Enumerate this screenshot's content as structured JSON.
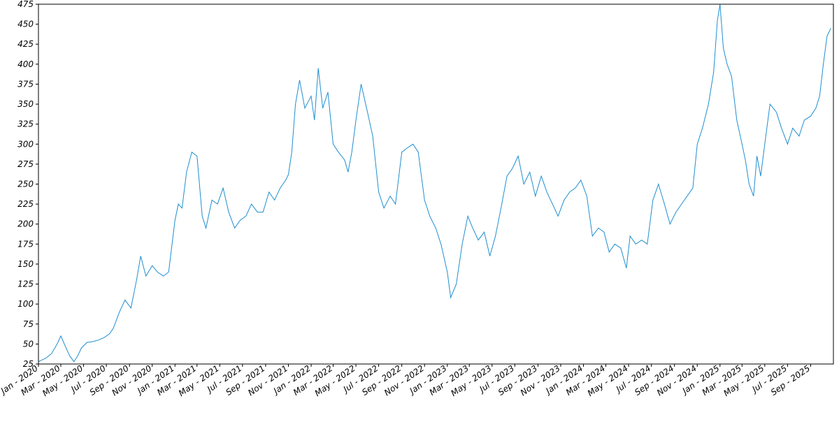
{
  "chart_data": {
    "type": "line",
    "title": "",
    "xlabel": "",
    "ylabel": "",
    "grid": false,
    "legend": "none",
    "line_color": "#1f8fd0",
    "x_domain": [
      "2020-01-01",
      "2025-11-01"
    ],
    "ylim": [
      25,
      475
    ],
    "y_ticks": [
      25,
      50,
      75,
      100,
      125,
      150,
      175,
      200,
      225,
      250,
      275,
      300,
      325,
      350,
      375,
      400,
      425,
      450,
      475
    ],
    "x_ticks": [
      {
        "date": "2020-01-01",
        "label": "Jan - 2020"
      },
      {
        "date": "2020-03-01",
        "label": "Mar - 2020"
      },
      {
        "date": "2020-05-01",
        "label": "May - 2020"
      },
      {
        "date": "2020-07-01",
        "label": "Jul - 2020"
      },
      {
        "date": "2020-09-01",
        "label": "Sep - 2020"
      },
      {
        "date": "2020-11-01",
        "label": "Nov - 2020"
      },
      {
        "date": "2021-01-01",
        "label": "Jan - 2021"
      },
      {
        "date": "2021-03-01",
        "label": "Mar - 2021"
      },
      {
        "date": "2021-05-01",
        "label": "May - 2021"
      },
      {
        "date": "2021-07-01",
        "label": "Jul - 2021"
      },
      {
        "date": "2021-09-01",
        "label": "Sep - 2021"
      },
      {
        "date": "2021-11-01",
        "label": "Nov - 2021"
      },
      {
        "date": "2022-01-01",
        "label": "Jan - 2022"
      },
      {
        "date": "2022-03-01",
        "label": "Mar - 2022"
      },
      {
        "date": "2022-05-01",
        "label": "May - 2022"
      },
      {
        "date": "2022-07-01",
        "label": "Jul - 2022"
      },
      {
        "date": "2022-09-01",
        "label": "Sep - 2022"
      },
      {
        "date": "2022-11-01",
        "label": "Nov - 2022"
      },
      {
        "date": "2023-01-01",
        "label": "Jan - 2023"
      },
      {
        "date": "2023-03-01",
        "label": "Mar - 2023"
      },
      {
        "date": "2023-05-01",
        "label": "May - 2023"
      },
      {
        "date": "2023-07-01",
        "label": "Jul - 2023"
      },
      {
        "date": "2023-09-01",
        "label": "Sep - 2023"
      },
      {
        "date": "2023-11-01",
        "label": "Nov - 2023"
      },
      {
        "date": "2024-01-01",
        "label": "Jan - 2024"
      },
      {
        "date": "2024-03-01",
        "label": "Mar - 2024"
      },
      {
        "date": "2024-05-01",
        "label": "May - 2024"
      },
      {
        "date": "2024-07-01",
        "label": "Jul - 2024"
      },
      {
        "date": "2024-09-01",
        "label": "Sep - 2024"
      },
      {
        "date": "2024-11-01",
        "label": "Nov - 2024"
      },
      {
        "date": "2025-01-01",
        "label": "Jan - 2025"
      },
      {
        "date": "2025-03-01",
        "label": "Mar - 2025"
      },
      {
        "date": "2025-05-01",
        "label": "May - 2025"
      },
      {
        "date": "2025-07-01",
        "label": "Jul - 2025"
      },
      {
        "date": "2025-09-01",
        "label": "Sep - 2025"
      }
    ],
    "series": [
      {
        "x": [
          "2020-01-01",
          "2020-01-20",
          "2020-02-05",
          "2020-02-20",
          "2020-03-01",
          "2020-03-15",
          "2020-03-25",
          "2020-04-05",
          "2020-04-15",
          "2020-04-25",
          "2020-05-10",
          "2020-05-25",
          "2020-06-10",
          "2020-06-25",
          "2020-07-10",
          "2020-07-20",
          "2020-08-05",
          "2020-08-20",
          "2020-09-05",
          "2020-09-20",
          "2020-10-01",
          "2020-10-15",
          "2020-11-01",
          "2020-11-15",
          "2020-12-01",
          "2020-12-15",
          "2021-01-01",
          "2021-01-10",
          "2021-01-20",
          "2021-02-01",
          "2021-02-15",
          "2021-03-01",
          "2021-03-15",
          "2021-03-25",
          "2021-04-10",
          "2021-04-25",
          "2021-05-10",
          "2021-05-25",
          "2021-06-10",
          "2021-06-25",
          "2021-07-10",
          "2021-07-25",
          "2021-08-10",
          "2021-08-25",
          "2021-09-10",
          "2021-09-25",
          "2021-10-10",
          "2021-10-25",
          "2021-11-01",
          "2021-11-10",
          "2021-11-20",
          "2021-12-01",
          "2021-12-15",
          "2022-01-01",
          "2022-01-10",
          "2022-01-20",
          "2022-02-01",
          "2022-02-15",
          "2022-03-01",
          "2022-03-15",
          "2022-04-01",
          "2022-04-10",
          "2022-04-20",
          "2022-05-01",
          "2022-05-15",
          "2022-06-01",
          "2022-06-15",
          "2022-07-01",
          "2022-07-15",
          "2022-08-01",
          "2022-08-15",
          "2022-09-01",
          "2022-09-15",
          "2022-10-01",
          "2022-10-15",
          "2022-11-01",
          "2022-11-15",
          "2022-12-01",
          "2022-12-15",
          "2023-01-01",
          "2023-01-10",
          "2023-01-25",
          "2023-02-10",
          "2023-02-25",
          "2023-03-10",
          "2023-03-25",
          "2023-04-10",
          "2023-04-25",
          "2023-05-10",
          "2023-05-25",
          "2023-06-10",
          "2023-06-25",
          "2023-07-10",
          "2023-07-25",
          "2023-08-10",
          "2023-08-25",
          "2023-09-10",
          "2023-09-25",
          "2023-10-10",
          "2023-10-25",
          "2023-11-10",
          "2023-11-25",
          "2023-12-10",
          "2023-12-25",
          "2024-01-10",
          "2024-01-25",
          "2024-02-10",
          "2024-02-25",
          "2024-03-10",
          "2024-03-25",
          "2024-04-10",
          "2024-04-25",
          "2024-05-05",
          "2024-05-20",
          "2024-06-05",
          "2024-06-20",
          "2024-07-05",
          "2024-07-20",
          "2024-08-05",
          "2024-08-20",
          "2024-09-05",
          "2024-09-20",
          "2024-10-05",
          "2024-10-20",
          "2024-11-01",
          "2024-11-15",
          "2024-12-01",
          "2024-12-15",
          "2024-12-25",
          "2025-01-01",
          "2025-01-10",
          "2025-01-20",
          "2025-02-01",
          "2025-02-15",
          "2025-03-01",
          "2025-03-10",
          "2025-03-20",
          "2025-04-01",
          "2025-04-10",
          "2025-04-20",
          "2025-05-01",
          "2025-05-15",
          "2025-06-01",
          "2025-06-15",
          "2025-07-01",
          "2025-07-15",
          "2025-08-01",
          "2025-08-15",
          "2025-09-01",
          "2025-09-15",
          "2025-09-25",
          "2025-10-05",
          "2025-10-15",
          "2025-10-25"
        ],
        "y": [
          28,
          32,
          38,
          50,
          60,
          45,
          35,
          28,
          35,
          45,
          52,
          53,
          55,
          58,
          63,
          70,
          90,
          105,
          95,
          130,
          160,
          135,
          148,
          140,
          135,
          140,
          205,
          225,
          220,
          265,
          290,
          285,
          210,
          195,
          230,
          225,
          245,
          215,
          195,
          205,
          210,
          225,
          215,
          215,
          240,
          230,
          245,
          255,
          262,
          290,
          350,
          380,
          345,
          360,
          330,
          395,
          345,
          365,
          300,
          290,
          280,
          265,
          290,
          330,
          375,
          340,
          310,
          240,
          220,
          235,
          225,
          290,
          295,
          300,
          290,
          230,
          210,
          195,
          175,
          140,
          108,
          125,
          175,
          210,
          195,
          180,
          190,
          160,
          185,
          220,
          260,
          270,
          285,
          250,
          265,
          235,
          260,
          240,
          225,
          210,
          230,
          240,
          245,
          255,
          235,
          185,
          195,
          190,
          165,
          175,
          170,
          145,
          185,
          175,
          180,
          175,
          230,
          250,
          225,
          200,
          215,
          225,
          235,
          245,
          300,
          320,
          350,
          390,
          455,
          475,
          420,
          400,
          385,
          330,
          300,
          280,
          250,
          235,
          285,
          260,
          300,
          350,
          340,
          320,
          300,
          320,
          310,
          330,
          335,
          345,
          360,
          400,
          435,
          445
        ]
      }
    ]
  }
}
